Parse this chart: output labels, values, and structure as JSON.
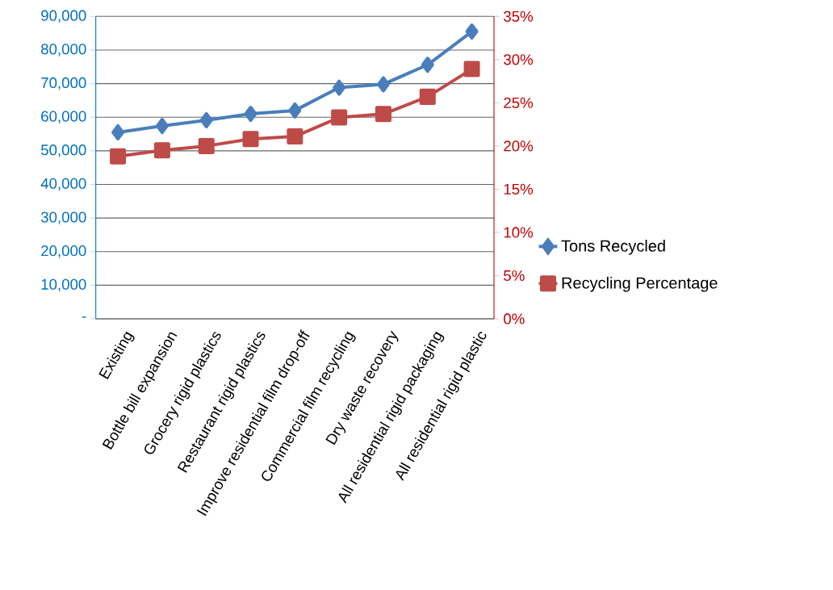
{
  "chart_data": {
    "type": "line",
    "categories": [
      "Existing",
      "Bottle bill expansion",
      "Grocery rigid plastics",
      "Restaurant rigid plastics",
      "Improve residential film drop-off",
      "Commercial film recycling",
      "Dry waste recovery",
      "All residential rigid packaging",
      "All residential rigid plastic"
    ],
    "series": [
      {
        "name": "Tons Recycled",
        "color": "#4a7ebb",
        "marker": "diamond",
        "values": [
          55500,
          57400,
          59100,
          61000,
          62000,
          68800,
          69800,
          75600,
          85500
        ]
      },
      {
        "name": "Recycling Percentage",
        "color": "#be4b48",
        "marker": "square",
        "axis": "y2",
        "values": [
          18.8,
          19.5,
          20.0,
          20.8,
          21.1,
          23.3,
          23.7,
          25.7,
          28.9
        ]
      }
    ],
    "ylim": [
      0,
      90000
    ],
    "yticks": [
      {
        "value": 0,
        "label": "-"
      },
      {
        "value": 10000,
        "label": "10,000"
      },
      {
        "value": 20000,
        "label": "20,000"
      },
      {
        "value": 30000,
        "label": "30,000"
      },
      {
        "value": 40000,
        "label": "40,000"
      },
      {
        "value": 50000,
        "label": "50,000"
      },
      {
        "value": 60000,
        "label": "60,000"
      },
      {
        "value": 70000,
        "label": "70,000"
      },
      {
        "value": 80000,
        "label": "80,000"
      },
      {
        "value": 90000,
        "label": "90,000"
      }
    ],
    "y2lim": [
      0,
      35
    ],
    "y2ticks": [
      {
        "value": 0,
        "label": "0%"
      },
      {
        "value": 5,
        "label": "5%"
      },
      {
        "value": 10,
        "label": "10%"
      },
      {
        "value": 15,
        "label": "15%"
      },
      {
        "value": 20,
        "label": "20%"
      },
      {
        "value": 25,
        "label": "25%"
      },
      {
        "value": 30,
        "label": "30%"
      },
      {
        "value": 35,
        "label": "35%"
      }
    ],
    "grid": "y",
    "legend": "right",
    "line_style": "solid"
  }
}
